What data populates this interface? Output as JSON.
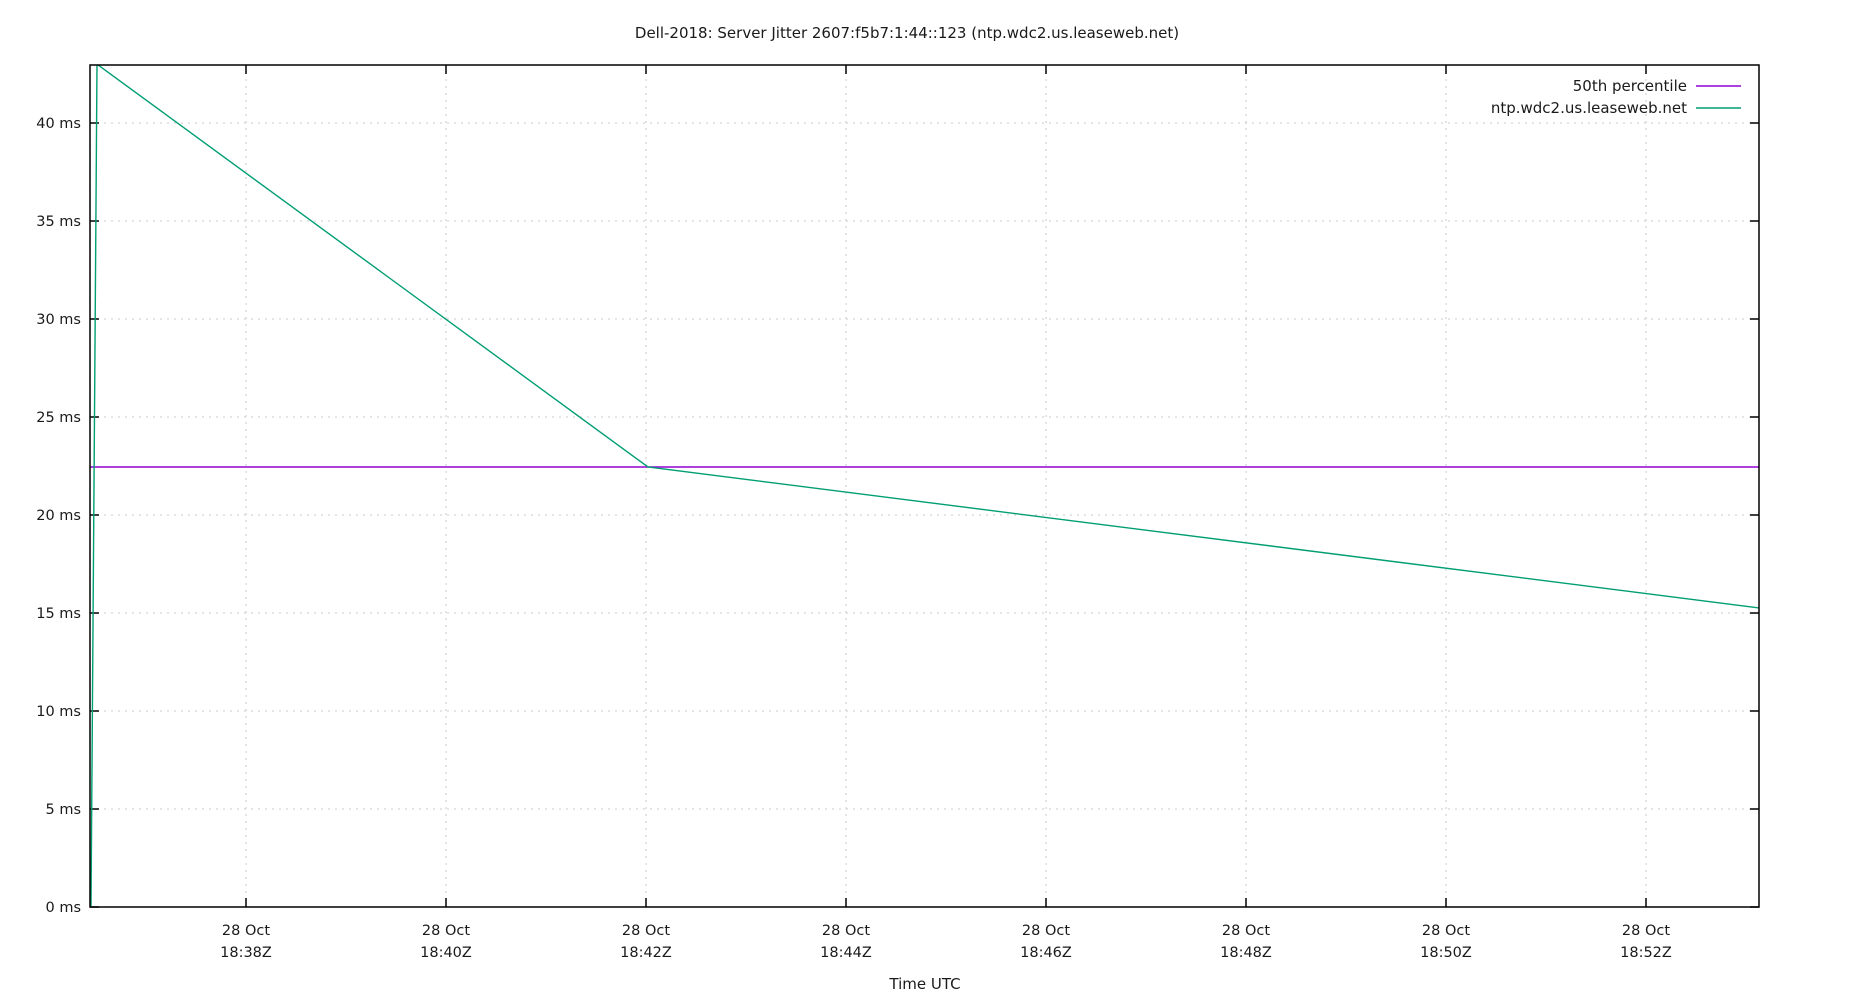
{
  "chart_data": {
    "type": "line",
    "title": "Dell-2018: Server Jitter 2607:f5b7:1:44::123 (ntp.wdc2.us.leaseweb.net)",
    "xlabel": "Time UTC",
    "ylabel": "",
    "ylim": [
      0,
      43
    ],
    "xlim": [
      "28 Oct 18:36:26Z",
      "28 Oct 18:53:08Z"
    ],
    "grid": true,
    "legend_position": "top-right inside",
    "y_ticks": [
      "0 ms",
      "5 ms",
      "10 ms",
      "15 ms",
      "20 ms",
      "25 ms",
      "30 ms",
      "35 ms",
      "40 ms"
    ],
    "y_tick_values": [
      0,
      5,
      10,
      15,
      20,
      25,
      30,
      35,
      40
    ],
    "x_ticks": [
      {
        "line1": "28 Oct",
        "line2": "18:38Z",
        "minute": 38
      },
      {
        "line1": "28 Oct",
        "line2": "18:40Z",
        "minute": 40
      },
      {
        "line1": "28 Oct",
        "line2": "18:42Z",
        "minute": 42
      },
      {
        "line1": "28 Oct",
        "line2": "18:44Z",
        "minute": 44
      },
      {
        "line1": "28 Oct",
        "line2": "18:46Z",
        "minute": 46
      },
      {
        "line1": "28 Oct",
        "line2": "18:48Z",
        "minute": 48
      },
      {
        "line1": "28 Oct",
        "line2": "18:50Z",
        "minute": 50
      },
      {
        "line1": "28 Oct",
        "line2": "18:52Z",
        "minute": 52
      }
    ],
    "series": [
      {
        "name": "50th percentile",
        "color": "#9400d3",
        "x_minutes": [
          36.44,
          53.13
        ],
        "values": [
          22.45,
          22.45
        ]
      },
      {
        "name": "ntp.wdc2.us.leaseweb.net",
        "color": "#009e73",
        "x_minutes": [
          36.45,
          36.51,
          42.02,
          53.13
        ],
        "values": [
          0.0,
          43.0,
          22.45,
          15.26
        ]
      }
    ]
  },
  "legend": {
    "items": [
      {
        "label": "50th percentile",
        "color": "#9400d3"
      },
      {
        "label": "ntp.wdc2.us.leaseweb.net",
        "color": "#009e73"
      }
    ]
  }
}
